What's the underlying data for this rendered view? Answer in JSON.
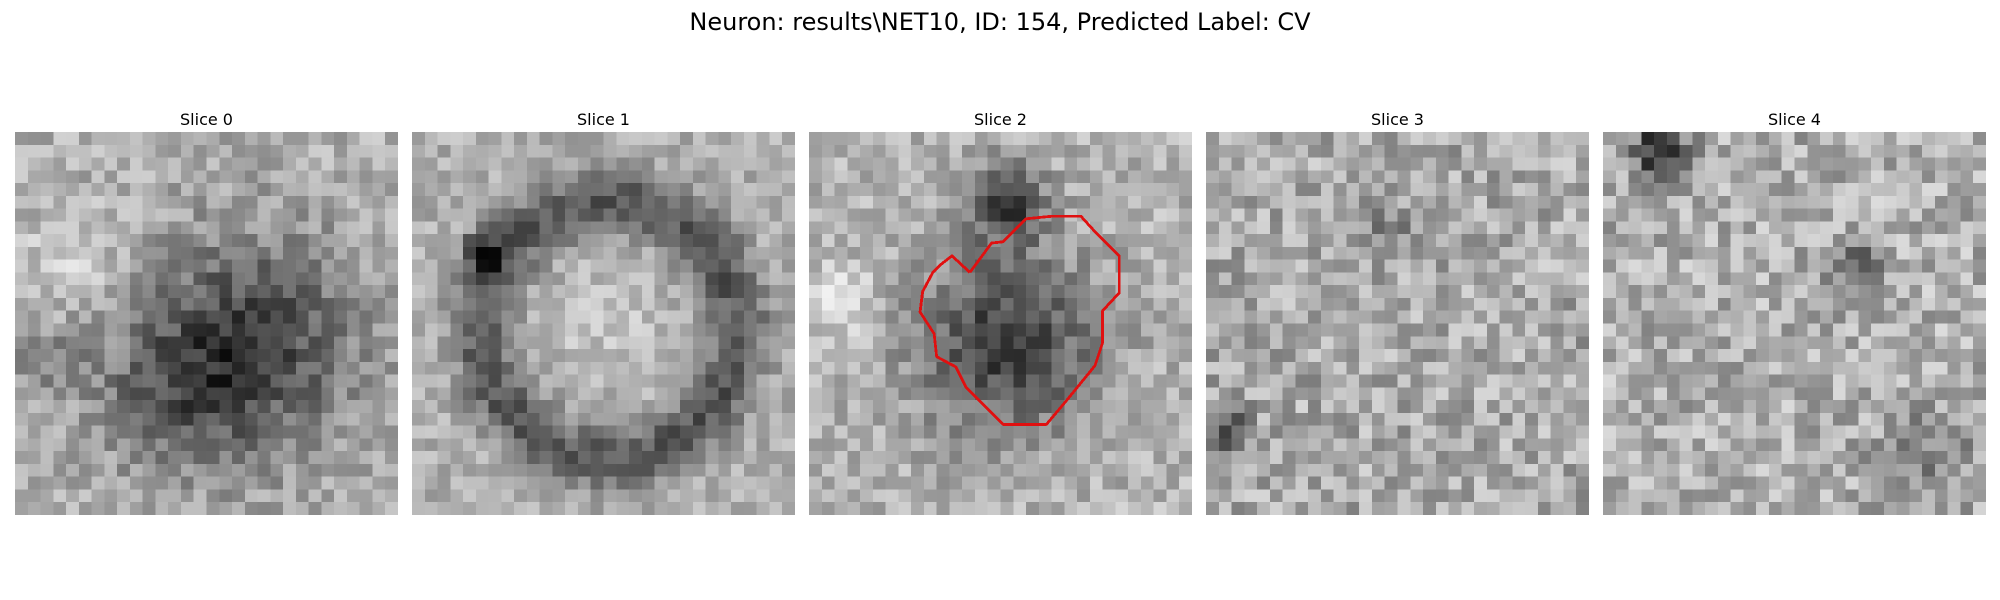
{
  "figure": {
    "title": "Neuron: results\\NET10, ID: 154, Predicted Label: CV",
    "colormap": "gray",
    "contour_color": "#e01010"
  },
  "panels": [
    {
      "title": "Slice 0"
    },
    {
      "title": "Slice 1"
    },
    {
      "title": "Slice 2",
      "has_contour": true
    },
    {
      "title": "Slice 3"
    },
    {
      "title": "Slice 4"
    }
  ]
}
